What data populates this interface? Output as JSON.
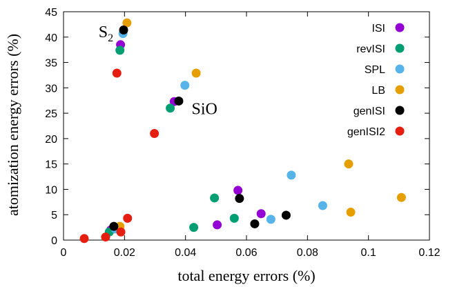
{
  "chart_data": {
    "type": "scatter",
    "xlabel": "total energy errors (%)",
    "ylabel": "atomization energy errors (%)",
    "xlim": [
      0,
      0.12
    ],
    "ylim": [
      0,
      45
    ],
    "xticks": [
      "0",
      "0.02",
      "0.04",
      "0.06",
      "0.08",
      "0.1",
      "0.12"
    ],
    "yticks": [
      "0",
      "5",
      "10",
      "15",
      "20",
      "25",
      "30",
      "35",
      "40",
      "45"
    ],
    "legend_position": "top-right",
    "annotations": [
      {
        "text": "S",
        "subscript": "2",
        "x": 0.0115,
        "y": 40.0
      },
      {
        "text": "SiO",
        "x": 0.042,
        "y": 24.8
      }
    ],
    "series": [
      {
        "name": "ISI",
        "color": "#9400d3",
        "points": [
          [
            0.0187,
            38.5
          ],
          [
            0.0363,
            27.3
          ],
          [
            0.0572,
            9.8
          ],
          [
            0.0648,
            5.2
          ],
          [
            0.0504,
            3.0
          ],
          [
            0.0155,
            2.0
          ]
        ]
      },
      {
        "name": "revISI",
        "color": "#009e73",
        "points": [
          [
            0.0185,
            37.4
          ],
          [
            0.035,
            26.0
          ],
          [
            0.0495,
            8.3
          ],
          [
            0.056,
            4.3
          ],
          [
            0.0427,
            2.5
          ],
          [
            0.015,
            1.6
          ]
        ]
      },
      {
        "name": "SPL",
        "color": "#56b4e9",
        "points": [
          [
            0.0195,
            40.7
          ],
          [
            0.0398,
            30.5
          ],
          [
            0.0747,
            12.8
          ],
          [
            0.085,
            6.8
          ],
          [
            0.068,
            4.1
          ],
          [
            0.017,
            2.2
          ]
        ]
      },
      {
        "name": "LB",
        "color": "#e69f00",
        "points": [
          [
            0.0208,
            42.8
          ],
          [
            0.0435,
            32.9
          ],
          [
            0.0935,
            15.0
          ],
          [
            0.1108,
            8.4
          ],
          [
            0.0942,
            5.5
          ],
          [
            0.0185,
            2.7
          ]
        ]
      },
      {
        "name": "genISI",
        "color": "#000000",
        "points": [
          [
            0.0197,
            41.4
          ],
          [
            0.0378,
            27.4
          ],
          [
            0.0577,
            8.2
          ],
          [
            0.073,
            4.9
          ],
          [
            0.0627,
            3.2
          ],
          [
            0.0165,
            2.7
          ]
        ]
      },
      {
        "name": "genISI2",
        "color": "#e51e10",
        "points": [
          [
            0.0175,
            32.9
          ],
          [
            0.0298,
            21.0
          ],
          [
            0.021,
            4.3
          ],
          [
            0.0188,
            1.6
          ],
          [
            0.0138,
            0.6
          ],
          [
            0.0068,
            0.3
          ]
        ]
      }
    ]
  }
}
